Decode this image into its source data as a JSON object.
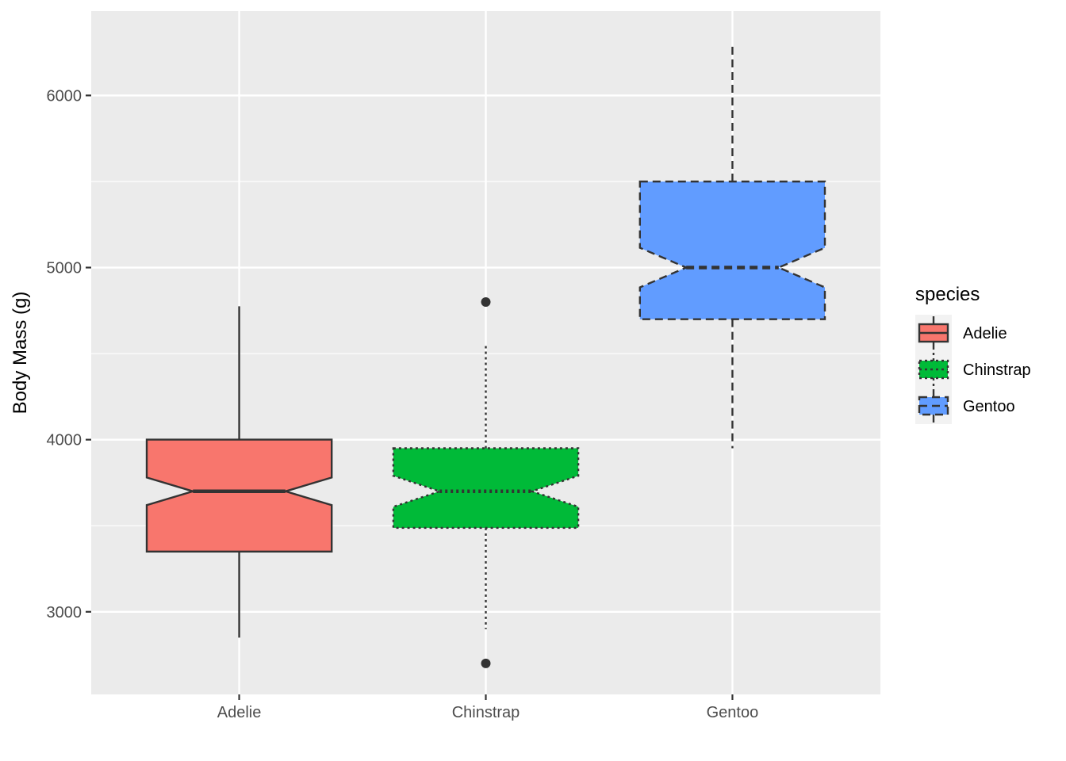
{
  "chart_data": {
    "type": "boxplot",
    "notched": true,
    "xlabel": "",
    "ylabel": "Body Mass (g)",
    "ylim": [
      2520,
      6490
    ],
    "yticks": [
      3000,
      4000,
      5000,
      6000
    ],
    "grid": true,
    "legend": {
      "title": "species",
      "position": "right"
    },
    "categories": [
      "Adelie",
      "Chinstrap",
      "Gentoo"
    ],
    "series": [
      {
        "name": "Adelie",
        "color": "#F8766D",
        "linetype": "solid",
        "whisker_low": 2850,
        "q1": 3350,
        "median": 3700,
        "q3": 4000,
        "whisker_high": 4775,
        "notch_low": 3620,
        "notch_high": 3780,
        "outliers": []
      },
      {
        "name": "Chinstrap",
        "color": "#00BA38",
        "linetype": "dotted",
        "whisker_low": 2900,
        "q1": 3487.5,
        "median": 3700,
        "q3": 3950,
        "whisker_high": 4550,
        "notch_low": 3610,
        "notch_high": 3790,
        "outliers": [
          2700,
          4800
        ]
      },
      {
        "name": "Gentoo",
        "color": "#619CFF",
        "linetype": "dashed",
        "whisker_low": 3950,
        "q1": 4700,
        "median": 5000,
        "q3": 5500,
        "whisker_high": 6300,
        "notch_low": 4885,
        "notch_high": 5115,
        "outliers": []
      }
    ]
  }
}
